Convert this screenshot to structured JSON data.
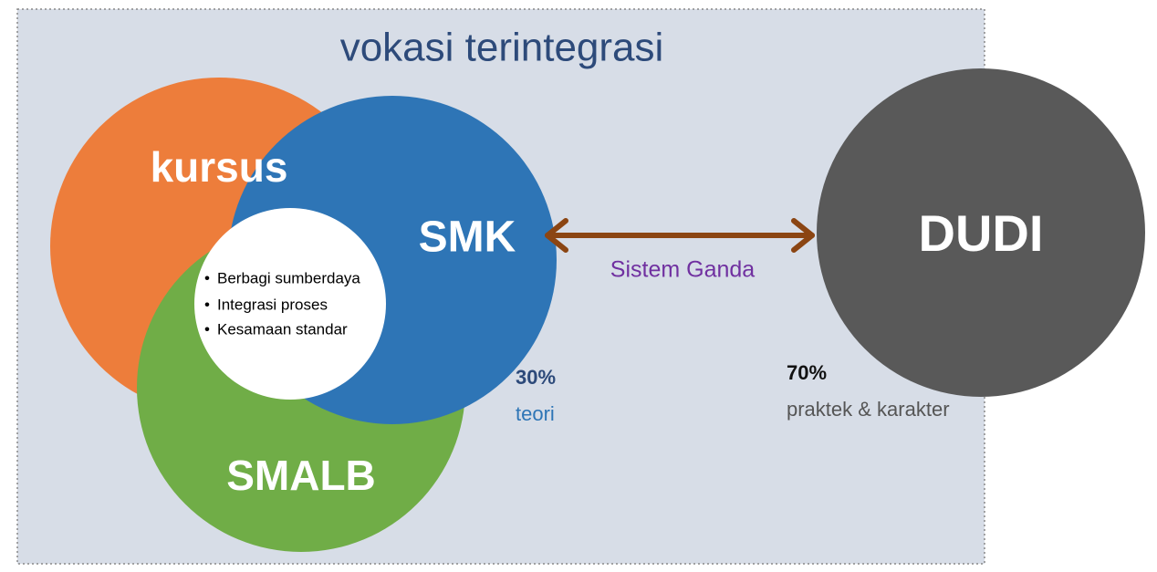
{
  "title": "vokasi terintegrasi",
  "circles": [
    {
      "label": "kursus"
    },
    {
      "label": "SMALB"
    },
    {
      "label": "SMK"
    },
    {
      "label": "DUDI"
    }
  ],
  "center": {
    "bullets": [
      "Berbagi sumberdaya",
      "Integrasi proses",
      "Kesamaan standar"
    ]
  },
  "link": {
    "label": "Sistem Ganda"
  },
  "stats": [
    {
      "value": "30%",
      "label": "teori"
    },
    {
      "value": "70%",
      "label": "praktek & karakter"
    }
  ]
}
